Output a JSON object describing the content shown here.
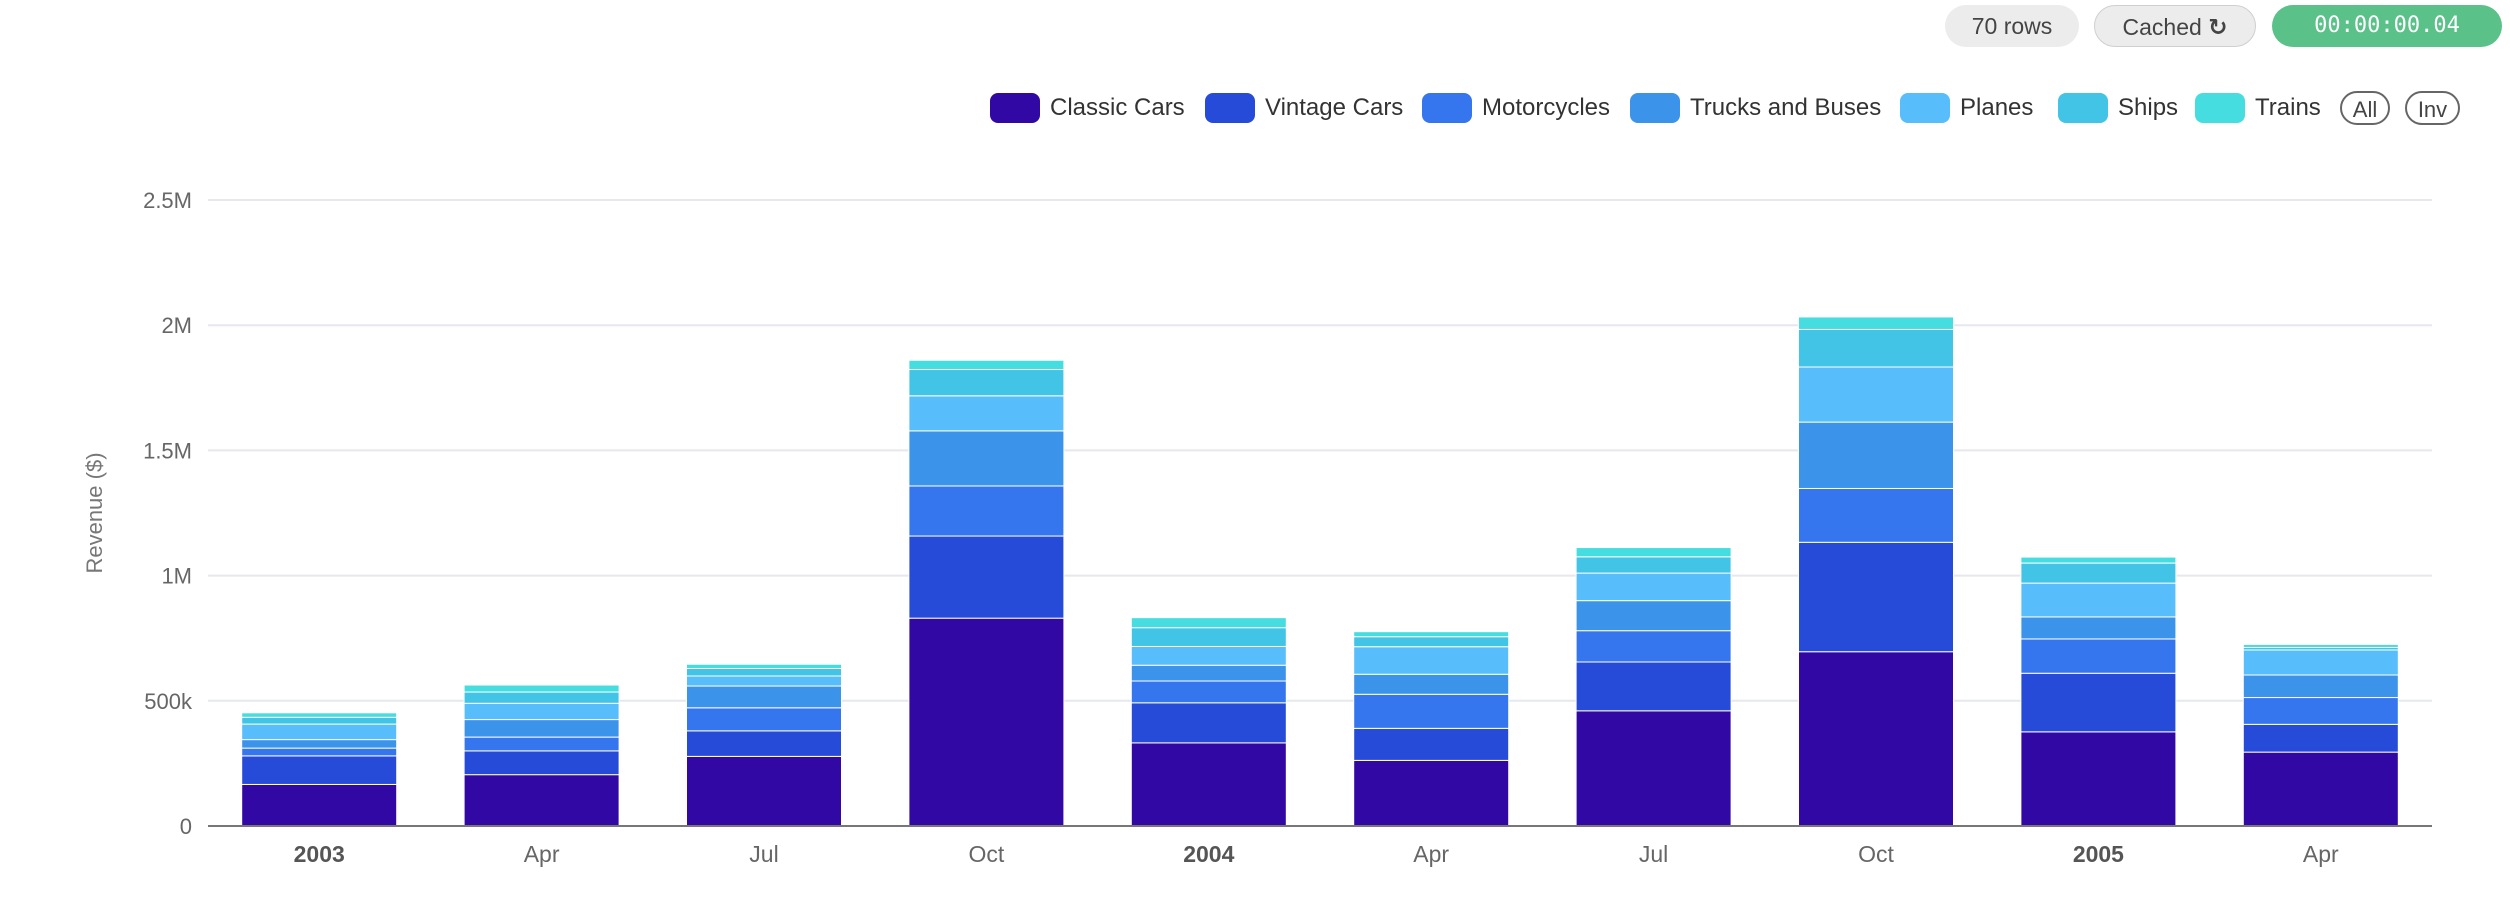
{
  "header": {
    "rows_label": "70 rows",
    "cached_label": "Cached",
    "timer": "00:00:00.04"
  },
  "legend": {
    "all_label": "All",
    "inv_label": "Inv"
  },
  "chart_data": {
    "type": "bar",
    "stacked": true,
    "ylabel": "Revenue ($)",
    "xlabel": "",
    "ylim": [
      0,
      2500000
    ],
    "yticks": [
      0,
      500000,
      1000000,
      1500000,
      2000000,
      2500000
    ],
    "ytick_labels": [
      "0",
      "500k",
      "1M",
      "1.5M",
      "2M",
      "2.5M"
    ],
    "grid": true,
    "legend_position": "top-right",
    "categories": [
      "2003",
      "Apr",
      "Jul",
      "Oct",
      "2004",
      "Apr",
      "Jul",
      "Oct",
      "2005",
      "Apr"
    ],
    "bold_categories": [
      "2003",
      "2004",
      "2005"
    ],
    "series": [
      {
        "name": "Classic Cars",
        "color": "#3108a3",
        "values": [
          166000,
          205000,
          278000,
          830000,
          332000,
          262000,
          460000,
          696000,
          376000,
          295000
        ]
      },
      {
        "name": "Vintage Cars",
        "color": "#274bd9",
        "values": [
          114000,
          95000,
          102000,
          328000,
          160000,
          128000,
          195000,
          437000,
          234000,
          111000
        ]
      },
      {
        "name": "Motorcycles",
        "color": "#3576ee",
        "values": [
          31000,
          55000,
          92000,
          200000,
          87000,
          136000,
          125000,
          215000,
          137000,
          107000
        ]
      },
      {
        "name": "Trucks and Buses",
        "color": "#3b93ea",
        "values": [
          34000,
          70000,
          87000,
          220000,
          63000,
          80000,
          120000,
          265000,
          88000,
          90000
        ]
      },
      {
        "name": "Planes",
        "color": "#58bdfb",
        "values": [
          62000,
          65000,
          40000,
          140000,
          75000,
          110000,
          110000,
          220000,
          135000,
          100000
        ]
      },
      {
        "name": "Ships",
        "color": "#41c4e6",
        "values": [
          27000,
          45000,
          30000,
          105000,
          75000,
          40000,
          65000,
          150000,
          80000,
          10000
        ]
      },
      {
        "name": "Trains",
        "color": "#46dde0",
        "values": [
          18000,
          28000,
          17000,
          37000,
          40000,
          20000,
          37000,
          50000,
          24000,
          12000
        ]
      }
    ]
  }
}
